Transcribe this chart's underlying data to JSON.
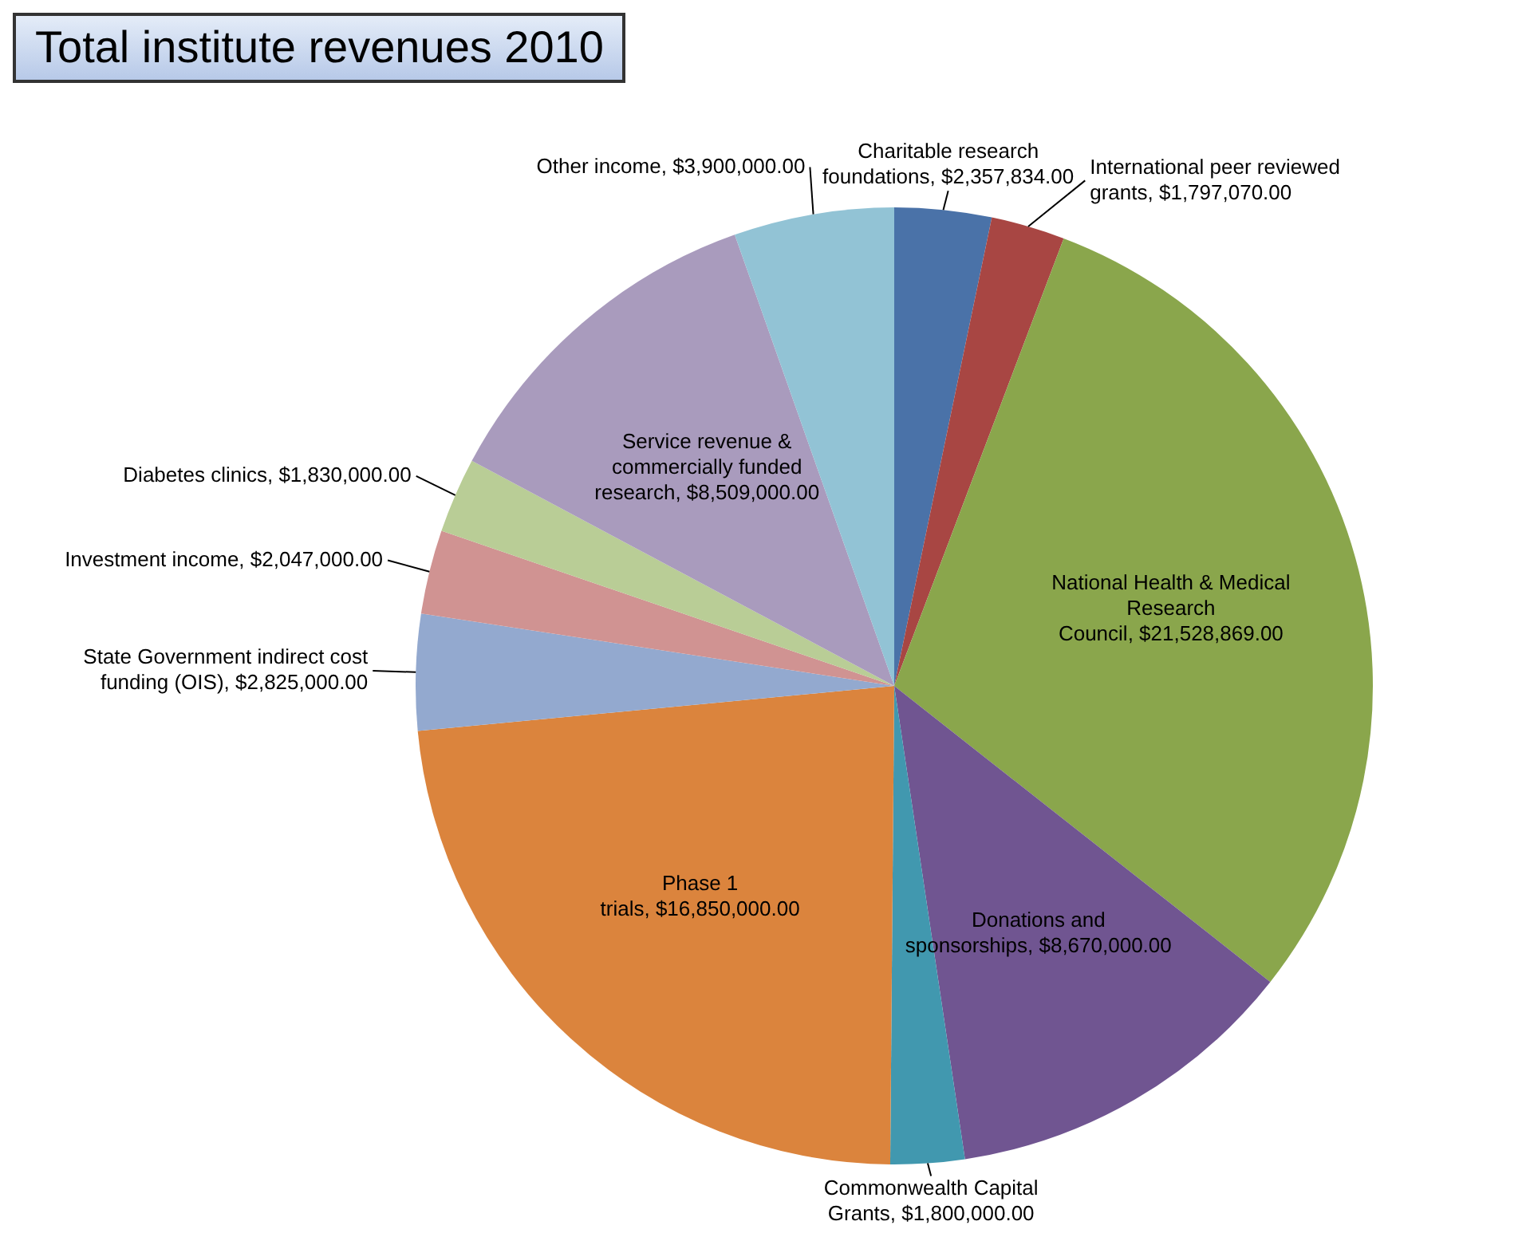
{
  "chart_data": {
    "type": "pie",
    "title": "Total institute revenues 2010",
    "categories": [
      "Charitable research foundations",
      "International peer reviewed grants",
      "National Health & Medical Research Council",
      "Donations and sponsorships",
      "Commonwealth Capital Grants",
      "Phase 1 trials",
      "State Government indirect cost funding (OIS)",
      "Investment income",
      "Diabetes clinics",
      "Service revenue & commercially funded research",
      "Other income"
    ],
    "values": [
      2357834,
      1797070,
      21528869,
      8670000,
      1800000,
      16850000,
      2825000,
      2047000,
      1830000,
      8509000,
      3900000
    ],
    "colors": [
      "#4a72a8",
      "#a84643",
      "#8aa64c",
      "#705591",
      "#4198af",
      "#db843d",
      "#93a9cf",
      "#d09392",
      "#b9cd96",
      "#a99bbd",
      "#92c3d5"
    ],
    "value_labels": [
      "$2,357,834.00",
      "$1,797,070.00",
      "$21,528,869.00",
      "$8,670,000.00",
      "$1,800,000.00",
      "$16,850,000.00",
      "$2,825,000.00",
      "$2,047,000.00",
      "$1,830,000.00",
      "$8,509,000.00",
      "$3,900,000.00"
    ]
  }
}
